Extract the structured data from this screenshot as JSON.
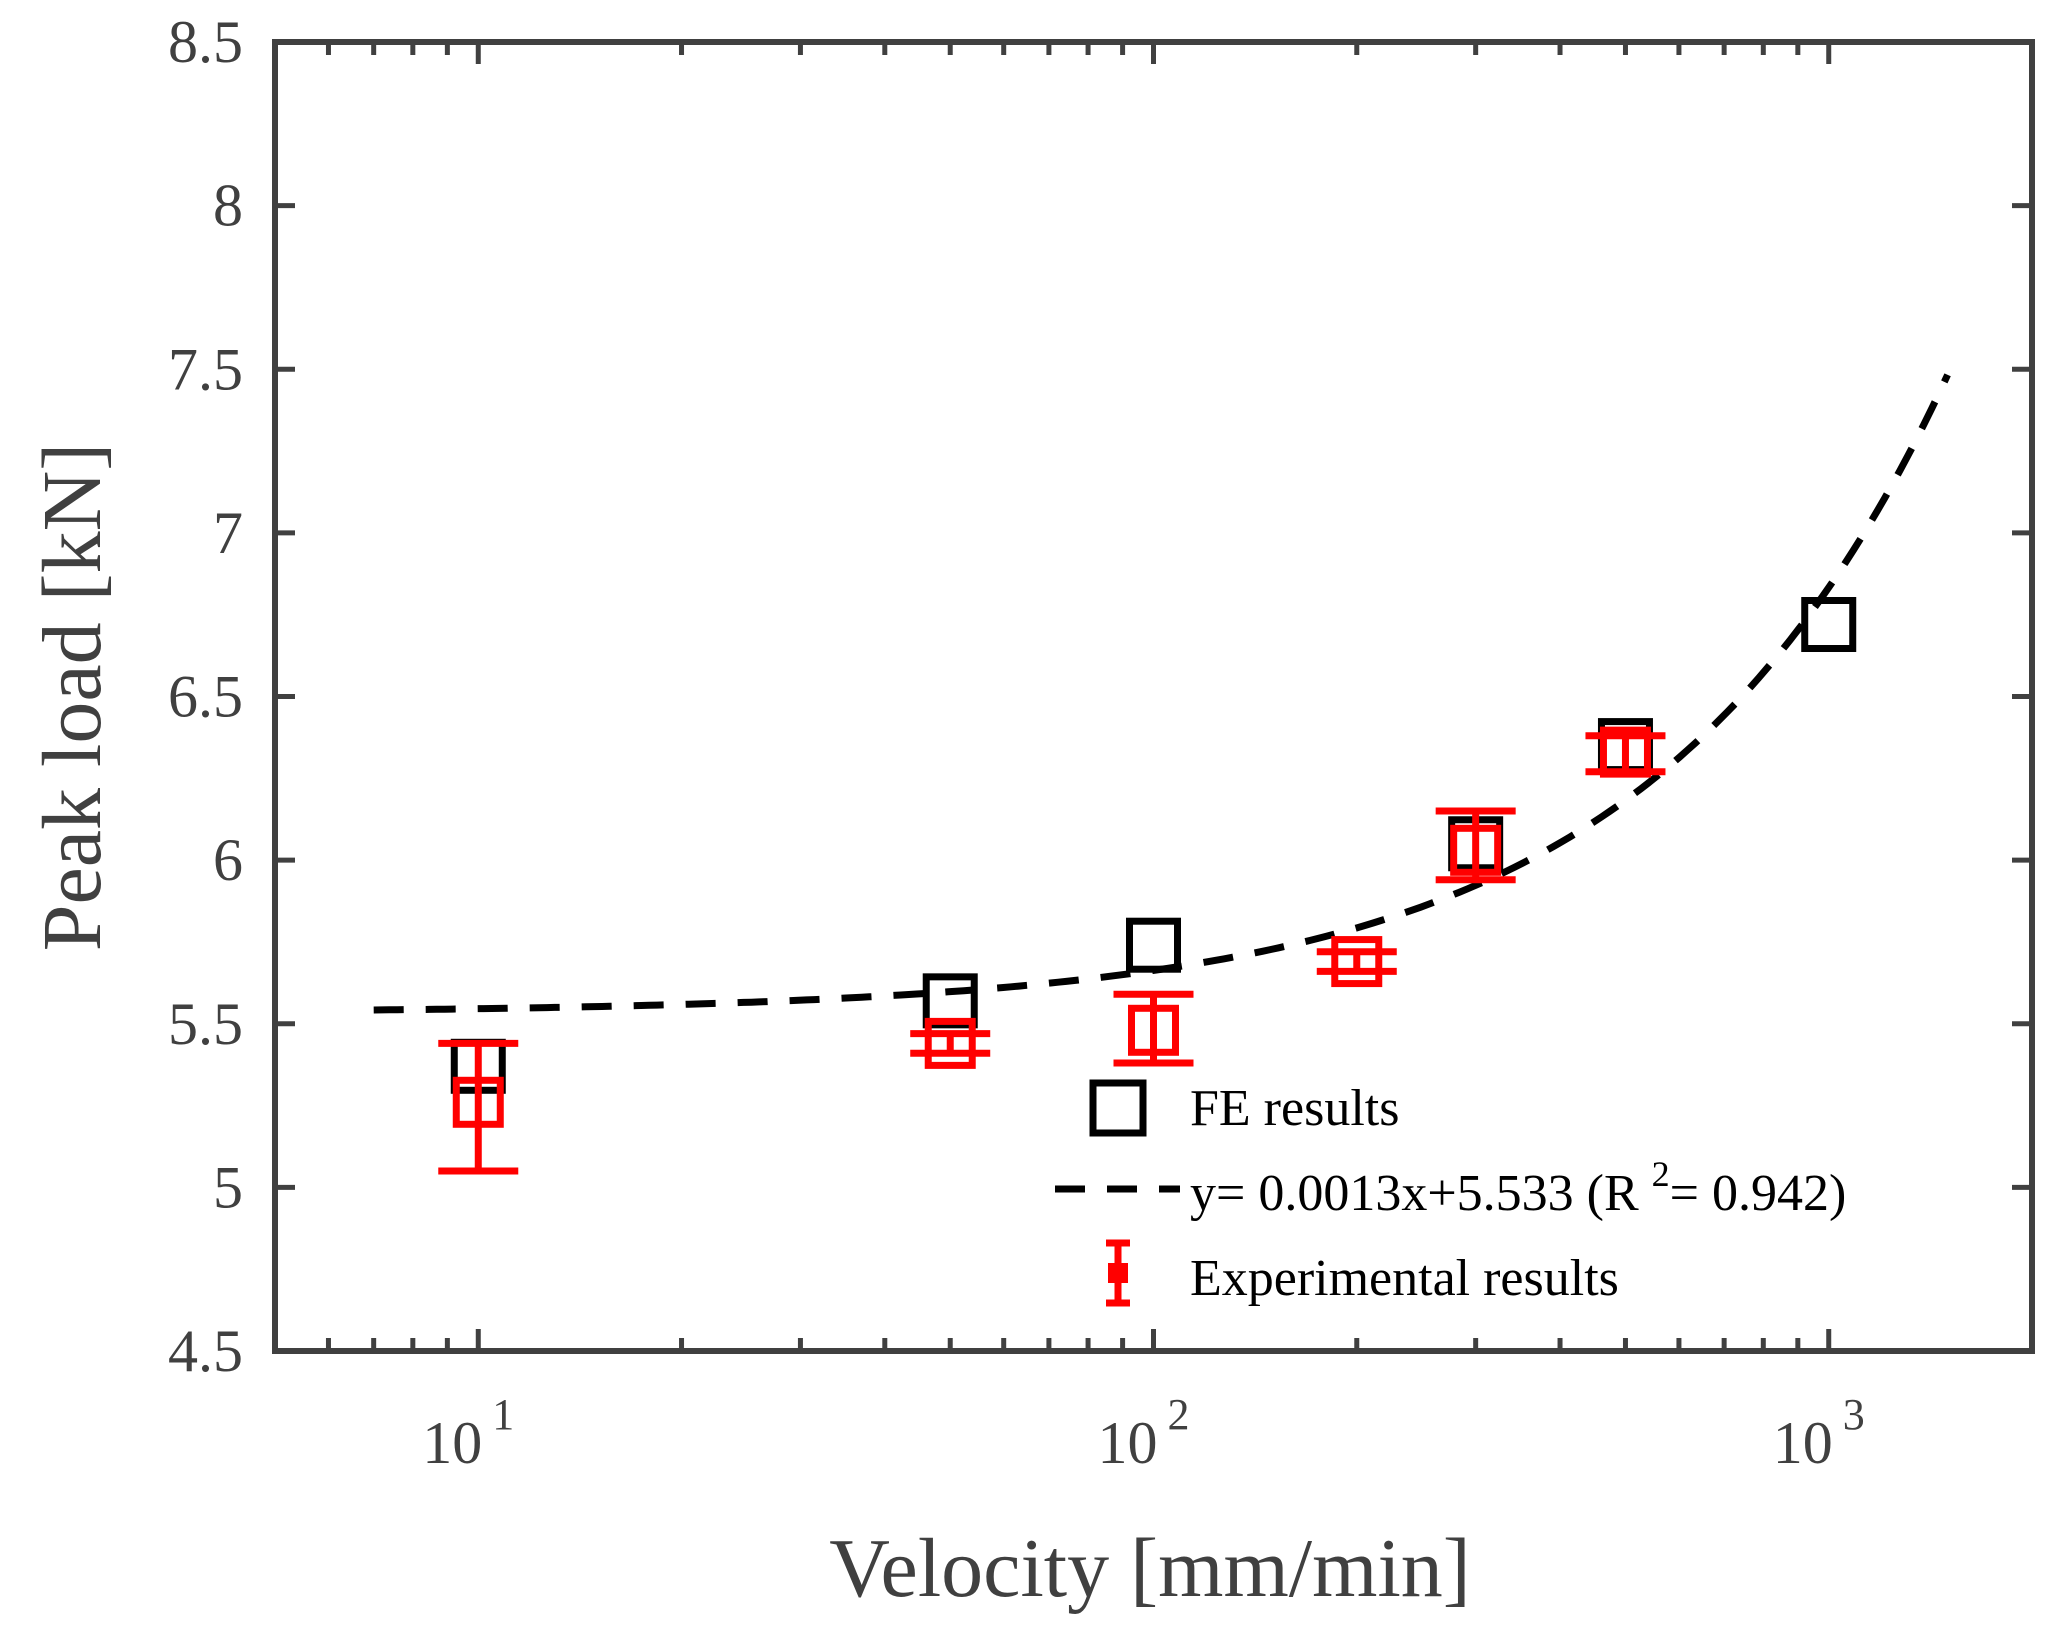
{
  "chart_data": {
    "type": "scatter",
    "title": "",
    "xlabel": "Velocity [mm/min]",
    "ylabel": "Peak load [kN]",
    "xscale": "log",
    "xlim": [
      5,
      2000
    ],
    "ylim": [
      4.5,
      8.5
    ],
    "yticks": [
      "4.5",
      "5",
      "5.5",
      "6",
      "6.5",
      "7",
      "7.5",
      "8",
      "8.5"
    ],
    "xticks": [
      {
        "base": "10",
        "exp": "1",
        "value": 10
      },
      {
        "base": "10",
        "exp": "2",
        "value": 100
      },
      {
        "base": "10",
        "exp": "3",
        "value": 1000
      }
    ],
    "series": [
      {
        "name": "FE results",
        "kind": "marker",
        "marker": "open-square",
        "color": "#000000",
        "points": [
          {
            "x": 10,
            "y": 5.37
          },
          {
            "x": 50,
            "y": 5.57
          },
          {
            "x": 100,
            "y": 5.74
          },
          {
            "x": 300,
            "y": 6.05
          },
          {
            "x": 500,
            "y": 6.35
          },
          {
            "x": 1000,
            "y": 6.72
          }
        ]
      },
      {
        "name": "y= 0.0013x+5.533 (R 2= 0.942)",
        "legend_base": "y= 0.0013x+5.533 (R ",
        "legend_sup": "2",
        "legend_tail": "= 0.942)",
        "kind": "fit-line",
        "style": "dashed",
        "color": "#000000",
        "slope": 0.0013,
        "intercept": 5.533,
        "x_range": [
          7,
          1500
        ]
      },
      {
        "name": "Experimental results",
        "kind": "errorbar",
        "marker": "open-square",
        "color": "#ff0000",
        "points": [
          {
            "x": 10,
            "y": 5.26,
            "low": 5.05,
            "high": 5.44
          },
          {
            "x": 50,
            "y": 5.44,
            "low": 5.41,
            "high": 5.47
          },
          {
            "x": 100,
            "y": 5.48,
            "low": 5.38,
            "high": 5.59
          },
          {
            "x": 200,
            "y": 5.69,
            "low": 5.66,
            "high": 5.72
          },
          {
            "x": 300,
            "y": 6.03,
            "low": 5.94,
            "high": 6.15
          },
          {
            "x": 500,
            "y": 6.33,
            "low": 6.27,
            "high": 6.38
          }
        ]
      }
    ],
    "legend": {
      "position": "bottom-right"
    }
  }
}
